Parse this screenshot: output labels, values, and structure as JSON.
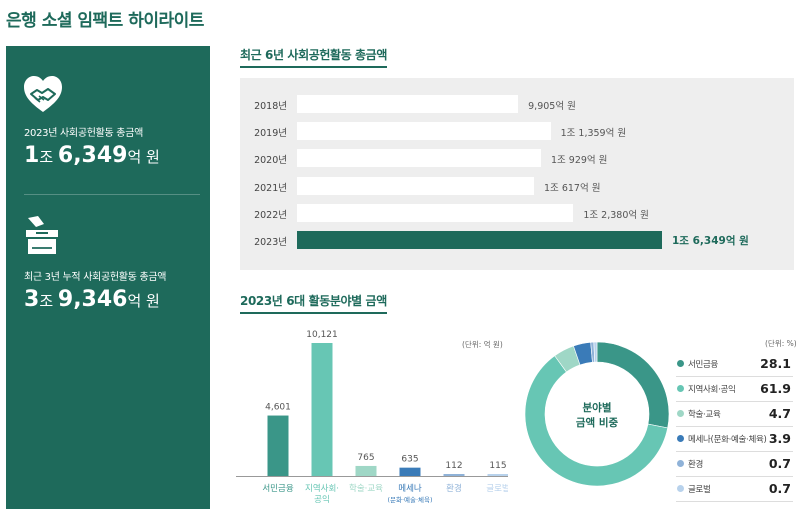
{
  "page_title": "은행 소셜 임팩트 하이라이트",
  "kpis": [
    {
      "label": "2023년 사회공헌활동 총금액",
      "num1": "1",
      "unit1": "조 ",
      "num2": "6,349",
      "unit2": "억 원",
      "icon": "heart-handshake-icon"
    },
    {
      "label": "최근 3년 누적 사회공헌활동 총금액",
      "num1": "3",
      "unit1": "조 ",
      "num2": "9,346",
      "unit2": "억 원",
      "icon": "donation-box-icon"
    }
  ],
  "colors": {
    "brand": "#1e6a5b",
    "panel_bg": "#eeeeee"
  },
  "chart_data": [
    {
      "type": "bar",
      "orientation": "horizontal",
      "title": "최근 6년 사회공헌활동 총금액",
      "categories": [
        "2018년",
        "2019년",
        "2020년",
        "2021년",
        "2022년",
        "2023년"
      ],
      "values": [
        9905,
        11359,
        10929,
        10617,
        12380,
        16349
      ],
      "value_labels": [
        "9,905억 원",
        "1조 1,359억 원",
        "1조 929억 원",
        "1조 617억 원",
        "1조 2,380억 원",
        "1조 6,349억 원"
      ],
      "highlight": "2023년",
      "grid": false
    },
    {
      "type": "bar",
      "title": "2023년 6대 활동분야별 금액",
      "unit_note": "(단위: 억 원)",
      "categories": [
        "서민금융",
        "지역사회·공익",
        "학술·교육",
        "메세나",
        "환경",
        "글로벌"
      ],
      "category_lines": [
        [
          "서민금융"
        ],
        [
          "지역사회·",
          "공익"
        ],
        [
          "학술·교육"
        ],
        [
          "메세나",
          "(문화·예술·체육)"
        ],
        [
          "환경"
        ],
        [
          "글로벌"
        ]
      ],
      "values": [
        4601,
        10121,
        765,
        635,
        112,
        115
      ],
      "value_labels": [
        "4,601",
        "10,121",
        "765",
        "635",
        "112",
        "115"
      ],
      "colors": [
        "#3a9688",
        "#67c6b4",
        "#9fd7c6",
        "#3a7bb8",
        "#8fb2d8",
        "#b8d2ec"
      ],
      "ylim": [
        0,
        10121
      ],
      "grid": false
    },
    {
      "type": "pie",
      "style": "donut",
      "center_label": [
        "분야별",
        "금액 비중"
      ],
      "unit_note": "(단위: %)",
      "labels": [
        "서민금융",
        "지역사회·공익",
        "학술·교육",
        "메세나(문화·예술·체육)",
        "환경",
        "글로벌"
      ],
      "values": [
        28.1,
        61.9,
        4.7,
        3.9,
        0.7,
        0.7
      ],
      "value_labels": [
        "28.1",
        "61.9",
        "4.7",
        "3.9",
        "0.7",
        "0.7"
      ],
      "colors": [
        "#3a9688",
        "#67c6b4",
        "#9fd7c6",
        "#3a7bb8",
        "#8fb2d8",
        "#b8d2ec"
      ],
      "legend": "right"
    }
  ]
}
